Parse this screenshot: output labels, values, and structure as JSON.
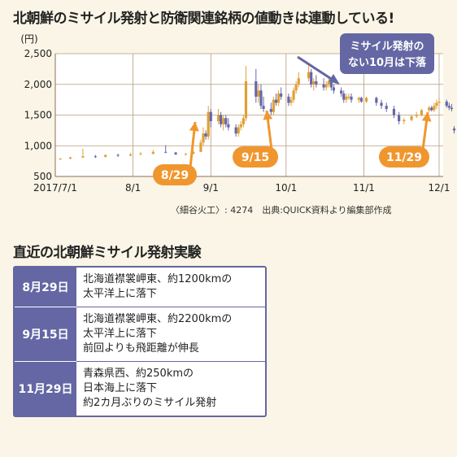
{
  "title": "北朝鮮のミサイル発射と防衛関連銘柄の値動きは連動している!",
  "source_note": "〈細谷火工〉: 4274　出典:QUICK資料より編集部作成",
  "chart_data": {
    "type": "candlestick",
    "y_unit_label": "(円)",
    "ylim": [
      500,
      2500
    ],
    "y_ticks": [
      500,
      1000,
      1500,
      2000,
      2500
    ],
    "y_tick_labels": [
      "500",
      "1,000",
      "1,500",
      "2,000",
      "2,500"
    ],
    "x_tick_labels": [
      "2017/7/1",
      "8/1",
      "9/1",
      "10/1",
      "11/1",
      "12/1"
    ],
    "x_tick_dates": [
      "2017-07-01",
      "2017-08-01",
      "2017-09-01",
      "2017-10-01",
      "2017-11-01",
      "2017-12-01"
    ],
    "x_range": [
      "2017-07-01",
      "2017-12-01"
    ],
    "grid": true,
    "series": [
      {
        "points": [
          [
            "2017-07-03",
            780,
            800,
            770,
            790
          ],
          [
            "2017-07-07",
            790,
            820,
            780,
            810
          ],
          [
            "2017-07-12",
            810,
            950,
            800,
            830
          ],
          [
            "2017-07-17",
            830,
            850,
            800,
            820
          ],
          [
            "2017-07-21",
            820,
            860,
            810,
            850
          ],
          [
            "2017-07-26",
            850,
            870,
            820,
            840
          ],
          [
            "2017-07-31",
            840,
            880,
            830,
            860
          ],
          [
            "2017-08-04",
            860,
            900,
            850,
            870
          ],
          [
            "2017-08-09",
            870,
            930,
            860,
            900
          ],
          [
            "2017-08-14",
            900,
            1010,
            880,
            890
          ],
          [
            "2017-08-18",
            890,
            900,
            850,
            860
          ],
          [
            "2017-08-22",
            860,
            880,
            840,
            870
          ],
          [
            "2017-08-25",
            870,
            920,
            860,
            900
          ],
          [
            "2017-08-28",
            900,
            1100,
            900,
            1050
          ],
          [
            "2017-08-29",
            1050,
            1300,
            1000,
            1200
          ],
          [
            "2017-08-30",
            1200,
            1250,
            1100,
            1150
          ],
          [
            "2017-08-31",
            1150,
            1650,
            1100,
            1550
          ],
          [
            "2017-09-01",
            1550,
            1600,
            1300,
            1400
          ],
          [
            "2017-09-04",
            1400,
            1600,
            1350,
            1500
          ],
          [
            "2017-09-05",
            1500,
            1550,
            1300,
            1350
          ],
          [
            "2017-09-06",
            1350,
            1500,
            1250,
            1450
          ],
          [
            "2017-09-07",
            1450,
            1500,
            1300,
            1350
          ],
          [
            "2017-09-08",
            1350,
            1450,
            1250,
            1300
          ],
          [
            "2017-09-11",
            1300,
            1350,
            1150,
            1200
          ],
          [
            "2017-09-12",
            1200,
            1350,
            1150,
            1300
          ],
          [
            "2017-09-13",
            1300,
            1400,
            1250,
            1350
          ],
          [
            "2017-09-14",
            1350,
            1500,
            1300,
            1450
          ],
          [
            "2017-09-15",
            1450,
            2300,
            1400,
            2050
          ],
          [
            "2017-09-19",
            2050,
            2250,
            1700,
            1800
          ],
          [
            "2017-09-20",
            1800,
            2000,
            1700,
            1900
          ],
          [
            "2017-09-21",
            1900,
            2000,
            1600,
            1650
          ],
          [
            "2017-09-22",
            1650,
            1800,
            1550,
            1600
          ],
          [
            "2017-09-25",
            1600,
            1700,
            1500,
            1550
          ],
          [
            "2017-09-26",
            1550,
            1800,
            1500,
            1750
          ],
          [
            "2017-09-27",
            1750,
            1850,
            1650,
            1700
          ],
          [
            "2017-09-28",
            1700,
            1900,
            1650,
            1850
          ],
          [
            "2017-09-29",
            1850,
            1950,
            1750,
            1800
          ],
          [
            "2017-10-02",
            1800,
            1850,
            1650,
            1700
          ],
          [
            "2017-10-03",
            1700,
            1800,
            1650,
            1750
          ],
          [
            "2017-10-04",
            1750,
            1950,
            1700,
            1900
          ],
          [
            "2017-10-05",
            1900,
            2050,
            1850,
            2000
          ],
          [
            "2017-10-06",
            2000,
            2200,
            1950,
            2100
          ],
          [
            "2017-10-10",
            2100,
            2350,
            2050,
            2200
          ],
          [
            "2017-10-11",
            2200,
            2250,
            1950,
            2000
          ],
          [
            "2017-10-12",
            2000,
            2100,
            1900,
            2050
          ],
          [
            "2017-10-13",
            2050,
            2150,
            1950,
            2000
          ],
          [
            "2017-10-16",
            2000,
            2100,
            1900,
            1950
          ],
          [
            "2017-10-17",
            1950,
            2050,
            1900,
            2000
          ],
          [
            "2017-10-18",
            2000,
            2100,
            1950,
            2050
          ],
          [
            "2017-10-19",
            2050,
            2100,
            1900,
            1950
          ],
          [
            "2017-10-20",
            1950,
            2000,
            1850,
            1900
          ],
          [
            "2017-10-23",
            1900,
            1950,
            1800,
            1850
          ],
          [
            "2017-10-24",
            1850,
            1900,
            1700,
            1750
          ],
          [
            "2017-10-25",
            1750,
            1850,
            1700,
            1800
          ],
          [
            "2017-10-26",
            1800,
            1850,
            1750,
            1800
          ],
          [
            "2017-10-27",
            1800,
            1850,
            1700,
            1750
          ],
          [
            "2017-10-30",
            1750,
            1800,
            1700,
            1780
          ],
          [
            "2017-10-31",
            1780,
            1800,
            1700,
            1720
          ],
          [
            "2017-11-02",
            1720,
            1800,
            1700,
            1780
          ],
          [
            "2017-11-06",
            1780,
            1800,
            1650,
            1700
          ],
          [
            "2017-11-08",
            1700,
            1750,
            1600,
            1650
          ],
          [
            "2017-11-10",
            1650,
            1700,
            1550,
            1600
          ],
          [
            "2017-11-13",
            1600,
            1650,
            1450,
            1500
          ],
          [
            "2017-11-15",
            1500,
            1550,
            1350,
            1400
          ],
          [
            "2017-11-17",
            1400,
            1450,
            1350,
            1420
          ],
          [
            "2017-11-20",
            1420,
            1500,
            1400,
            1480
          ],
          [
            "2017-11-22",
            1480,
            1550,
            1450,
            1500
          ],
          [
            "2017-11-24",
            1500,
            1600,
            1480,
            1580
          ],
          [
            "2017-11-27",
            1580,
            1650,
            1550,
            1620
          ],
          [
            "2017-11-28",
            1620,
            1650,
            1560,
            1580
          ],
          [
            "2017-11-29",
            1580,
            1700,
            1550,
            1650
          ],
          [
            "2017-11-30",
            1650,
            1750,
            1600,
            1700
          ],
          [
            "2017-12-01",
            1700,
            1780,
            1650,
            1720
          ],
          [
            "2017-12-04",
            1720,
            1750,
            1620,
            1650
          ],
          [
            "2017-12-05",
            1650,
            1700,
            1580,
            1620
          ],
          [
            "2017-12-06",
            1620,
            1680,
            1560,
            1600
          ],
          [
            "2017-12-07",
            1280,
            1320,
            1200,
            1250
          ]
        ]
      }
    ],
    "annotations": [
      {
        "label": "8/29",
        "date": "2017-08-29",
        "value": 1200
      },
      {
        "label": "9/15",
        "date": "2017-09-15",
        "value": 1650
      },
      {
        "label": "11/29",
        "date": "2017-11-29",
        "value": 1580
      },
      {
        "label_lines": [
          "ミサイル発射の",
          "ない10月は下落"
        ],
        "date": "2017-10-10",
        "value": 2350
      }
    ]
  },
  "section_title": "直近の北朝鮮ミサイル発射実験",
  "tests": [
    {
      "date": "8月29日",
      "lines": [
        "北海道襟裳岬東、約1200kmの",
        "太平洋上に落下"
      ]
    },
    {
      "date": "9月15日",
      "lines": [
        "北海道襟裳岬東、約2200kmの",
        "太平洋上に落下",
        "前回よりも飛距離が伸長"
      ]
    },
    {
      "date": "11月29日",
      "lines": [
        "青森県西、約250kmの",
        "日本海上に落下",
        "約2カ月ぶりのミサイル発射"
      ]
    }
  ]
}
